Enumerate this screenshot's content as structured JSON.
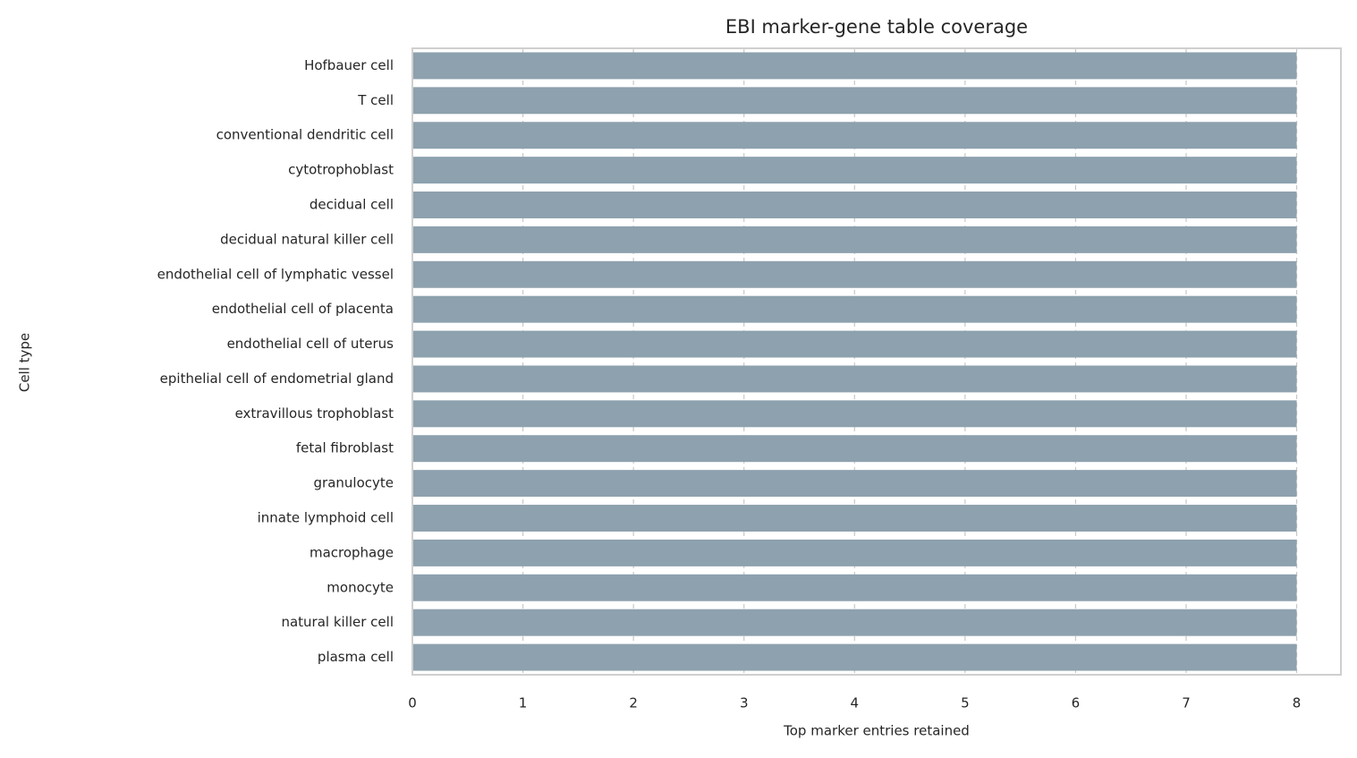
{
  "chart_data": {
    "type": "bar",
    "orientation": "horizontal",
    "title": "EBI marker-gene table coverage",
    "x_label": "Top marker entries retained",
    "y_label": "Cell type",
    "categories": [
      "Hofbauer cell",
      "T cell",
      "conventional dendritic cell",
      "cytotrophoblast",
      "decidual cell",
      "decidual natural killer cell",
      "endothelial cell of lymphatic vessel",
      "endothelial cell of placenta",
      "endothelial cell of uterus",
      "epithelial cell of endometrial gland",
      "extravillous trophoblast",
      "fetal fibroblast",
      "granulocyte",
      "innate lymphoid cell",
      "macrophage",
      "monocyte",
      "natural killer cell",
      "plasma cell"
    ],
    "values": [
      8,
      8,
      8,
      8,
      8,
      8,
      8,
      8,
      8,
      8,
      8,
      8,
      8,
      8,
      8,
      8,
      8,
      8
    ],
    "color": "#8da1ae",
    "xlim": [
      0,
      8.4
    ],
    "xticks": [
      0,
      1,
      2,
      3,
      4,
      5,
      6,
      7,
      8
    ],
    "grid": true
  }
}
